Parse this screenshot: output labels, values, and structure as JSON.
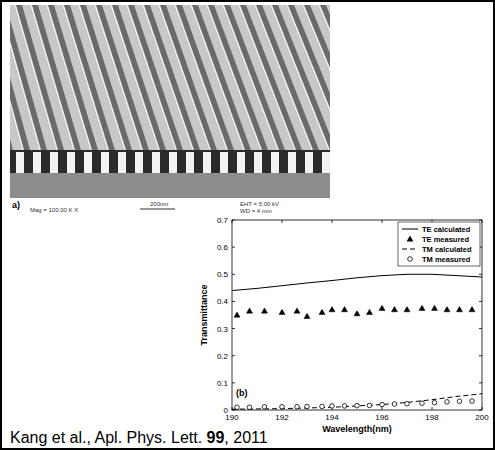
{
  "chart_data": {
    "type": "line",
    "x_label": "Wavelength(nm)",
    "y_label": "Transmittance",
    "panel_label": "(b)",
    "xlim": [
      190,
      200
    ],
    "xticks": [
      190,
      192,
      194,
      196,
      198,
      200
    ],
    "ylim": [
      0,
      0.7
    ],
    "yticks": [
      0,
      0.1,
      0.2,
      0.3,
      0.4,
      0.5,
      0.6,
      0.7
    ],
    "grid": false,
    "legend": "upper right",
    "series": [
      {
        "name": "TE calculated",
        "type": "line",
        "color": "#000000",
        "line_style": "solid",
        "marker": "none",
        "x": [
          190,
          191,
          192,
          193,
          194,
          195,
          196,
          197,
          198,
          199,
          200
        ],
        "values": [
          0.44,
          0.448,
          0.458,
          0.468,
          0.477,
          0.487,
          0.495,
          0.5,
          0.5,
          0.495,
          0.49
        ]
      },
      {
        "name": "TE measured",
        "type": "scatter",
        "color": "#000000",
        "line_style": "none",
        "marker": "triangle",
        "x": [
          190.2,
          190.7,
          191.3,
          192.0,
          192.6,
          193.0,
          193.6,
          194.0,
          194.5,
          195.0,
          195.5,
          196.0,
          196.5,
          197.0,
          197.6,
          198.1,
          198.6,
          199.1,
          199.6
        ],
        "values": [
          0.35,
          0.365,
          0.365,
          0.36,
          0.365,
          0.345,
          0.36,
          0.37,
          0.37,
          0.355,
          0.36,
          0.375,
          0.37,
          0.37,
          0.375,
          0.375,
          0.37,
          0.37,
          0.37
        ]
      },
      {
        "name": "TM calculated",
        "type": "line",
        "color": "#000000",
        "line_style": "dashed",
        "marker": "none",
        "x": [
          190,
          192,
          194,
          195,
          196,
          197,
          198,
          199,
          200
        ],
        "values": [
          0.003,
          0.005,
          0.01,
          0.015,
          0.02,
          0.028,
          0.038,
          0.05,
          0.06
        ]
      },
      {
        "name": "TM measured",
        "type": "scatter",
        "color": "#000000",
        "line_style": "none",
        "marker": "circle",
        "x": [
          190.2,
          190.7,
          191.3,
          192.0,
          192.6,
          193.0,
          193.6,
          194.0,
          194.5,
          195.0,
          195.5,
          196.0,
          196.5,
          197.0,
          197.6,
          198.1,
          198.6,
          199.1,
          199.6
        ],
        "values": [
          0.01,
          0.01,
          0.012,
          0.012,
          0.012,
          0.013,
          0.013,
          0.015,
          0.015,
          0.016,
          0.017,
          0.02,
          0.022,
          0.023,
          0.025,
          0.027,
          0.03,
          0.032,
          0.033
        ]
      }
    ]
  },
  "sem_image": {
    "panel_label": "a)",
    "scale_bar": "200nm",
    "eht": "EHT = 5.00 kV",
    "mag": "Mag = 100.00 K X",
    "wd": "WD = 4 mm"
  },
  "caption": [
    "Kang et al., Apl. Phys. Lett. ",
    "99",
    ", 2011"
  ]
}
